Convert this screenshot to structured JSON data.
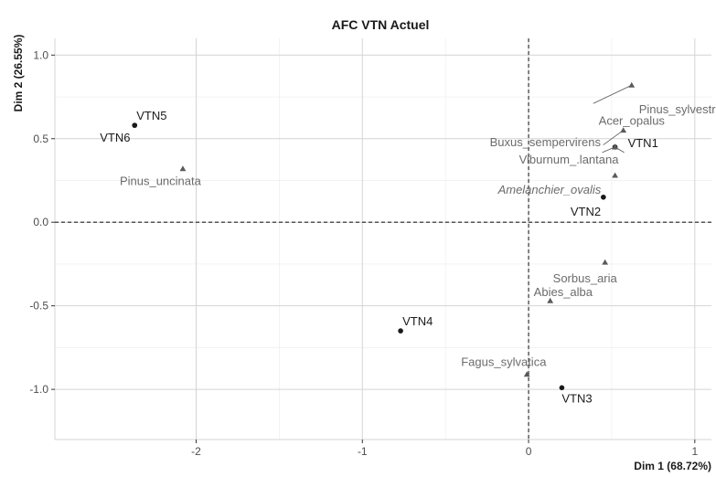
{
  "chart_data": {
    "type": "scatter",
    "title": "AFC VTN Actuel",
    "xlabel": "Dim 1 (68.72%)",
    "ylabel": "Dim 2 (26.55%)",
    "xlim": [
      -2.85,
      1.1
    ],
    "ylim": [
      -1.3,
      1.1
    ],
    "xticks": [
      {
        "value": -2,
        "label": "-2"
      },
      {
        "value": -1,
        "label": "-1"
      },
      {
        "value": 0,
        "label": "0"
      },
      {
        "value": 1,
        "label": "1"
      }
    ],
    "yticks": [
      {
        "value": 1.0,
        "label": "1.0"
      },
      {
        "value": 0.5,
        "label": "0.5"
      },
      {
        "value": 0.0,
        "label": "0.0"
      },
      {
        "value": -0.5,
        "label": "-0.5"
      },
      {
        "value": -1.0,
        "label": "-1.0"
      }
    ],
    "reference_lines": {
      "x": 0,
      "y": 0
    },
    "grid": true,
    "series": [
      {
        "marker": "circle",
        "color": "#1a1a1a",
        "points": [
          {
            "label": "VTN1",
            "x": 0.52,
            "y": 0.45
          },
          {
            "label": "VTN2",
            "x": 0.45,
            "y": 0.15
          },
          {
            "label": "VTN3",
            "x": 0.2,
            "y": -0.99
          },
          {
            "label": "VTN4",
            "x": -0.77,
            "y": -0.65
          },
          {
            "label": "VTN5",
            "x": -2.37,
            "y": 0.58
          },
          {
            "label": "VTN6",
            "x": -2.37,
            "y": 0.58
          }
        ]
      },
      {
        "marker": "triangle",
        "color": "#5a5a5a",
        "points": [
          {
            "label": "Pinus_sylvestris",
            "x": 0.62,
            "y": 0.82
          },
          {
            "label": "Acer_opalus",
            "x": 0.57,
            "y": 0.55
          },
          {
            "label": "Buxus_sempervirens",
            "x": 0.52,
            "y": 0.45
          },
          {
            "label": "Viburnum_.lantana",
            "x": 0.52,
            "y": 0.45
          },
          {
            "label": "Amelanchier_ovalis",
            "x": 0.52,
            "y": 0.28
          },
          {
            "label": "Pinus_uncinata",
            "x": -2.08,
            "y": 0.32
          },
          {
            "label": "Sorbus_aria",
            "x": 0.46,
            "y": -0.24
          },
          {
            "label": "Abies_alba",
            "x": 0.13,
            "y": -0.47
          },
          {
            "label": "Fagus_sylvatica",
            "x": -0.01,
            "y": -0.91
          }
        ]
      }
    ]
  }
}
